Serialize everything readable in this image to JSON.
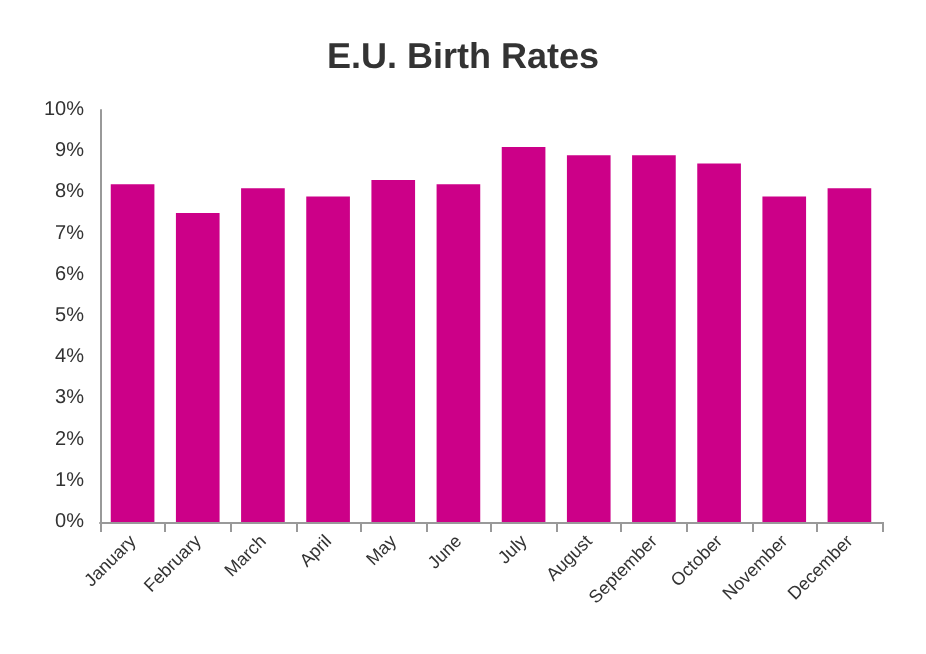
{
  "chart_data": {
    "type": "bar",
    "title": "E.U. Birth Rates",
    "categories": [
      "January",
      "February",
      "March",
      "April",
      "May",
      "June",
      "July",
      "August",
      "September",
      "October",
      "November",
      "December"
    ],
    "values": [
      8.2,
      7.5,
      8.1,
      7.9,
      8.3,
      8.2,
      9.1,
      8.9,
      8.9,
      8.7,
      7.9,
      8.1
    ],
    "color": "#cc0088",
    "ylim": [
      0,
      10
    ],
    "yticks": [
      {
        "value": 0,
        "label": "0%"
      },
      {
        "value": 1,
        "label": "1%"
      },
      {
        "value": 2,
        "label": "2%"
      },
      {
        "value": 3,
        "label": "3%"
      },
      {
        "value": 4,
        "label": "4%"
      },
      {
        "value": 5,
        "label": "5%"
      },
      {
        "value": 6,
        "label": "6%"
      },
      {
        "value": 7,
        "label": "7%"
      },
      {
        "value": 8,
        "label": "8%"
      },
      {
        "value": 9,
        "label": "9%"
      },
      {
        "value": 10,
        "label": "10%"
      }
    ],
    "grid": false
  }
}
